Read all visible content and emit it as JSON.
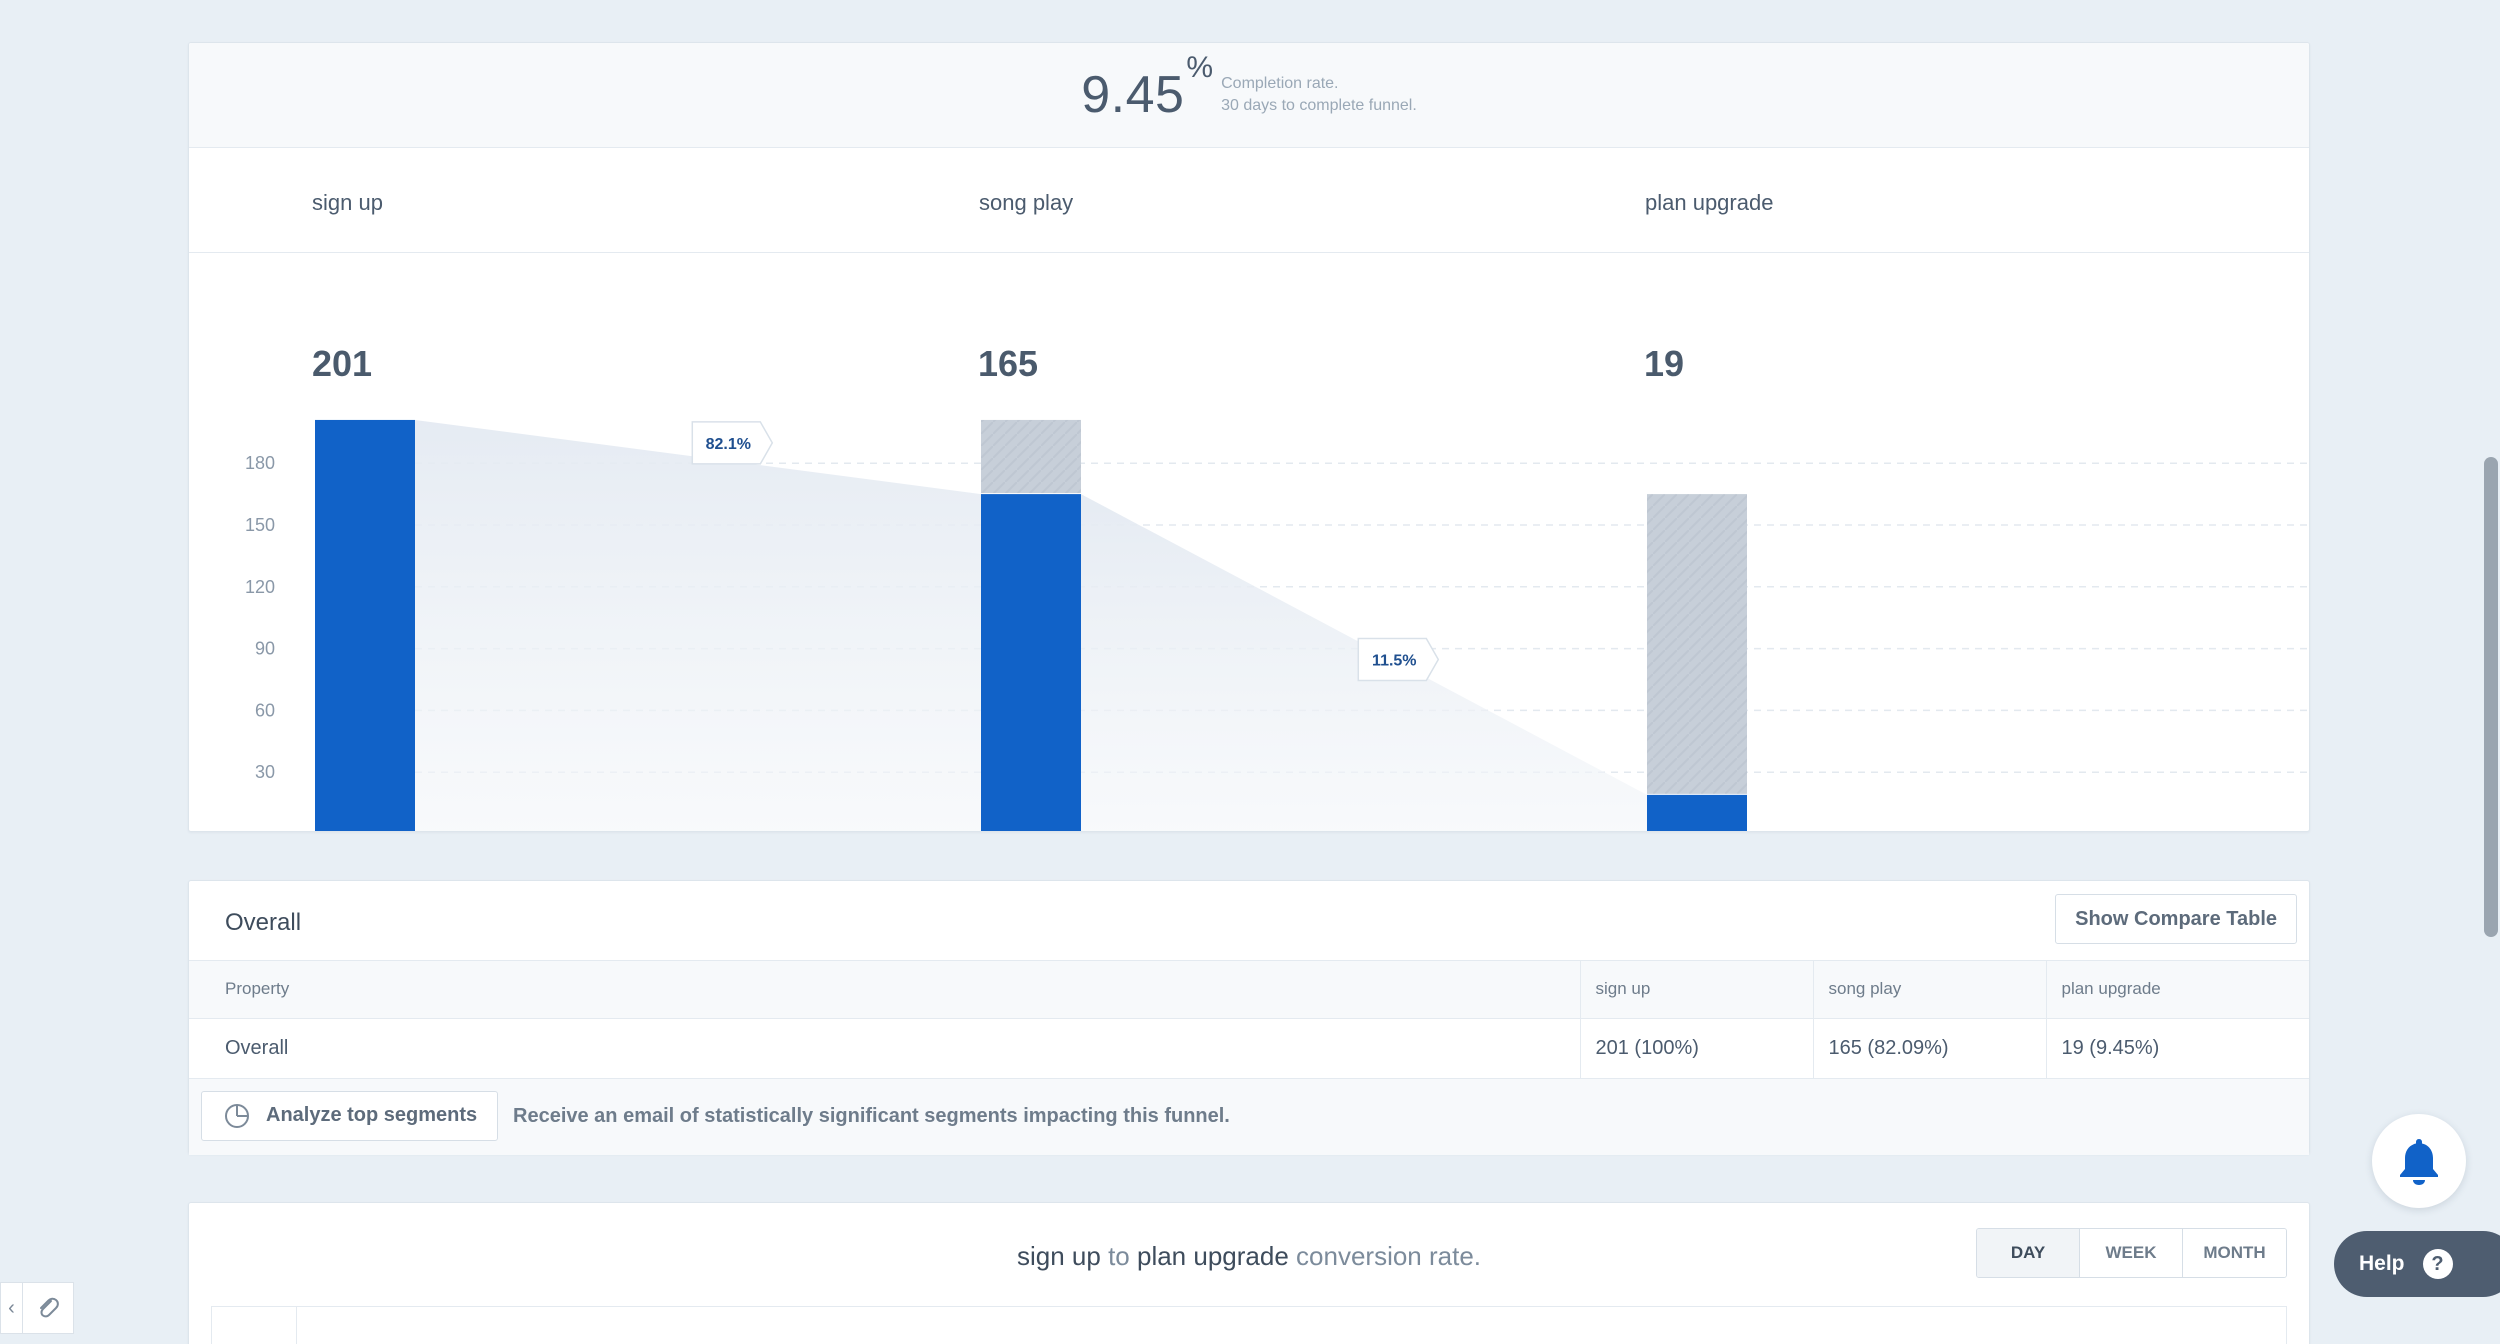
{
  "funnel": {
    "completion_value": "9.45",
    "completion_pct": "%",
    "completion_note_1": "Completion rate.",
    "completion_note_2": "30 days to complete funnel.",
    "steps": [
      {
        "name": "sign up",
        "count": "201"
      },
      {
        "name": "song play",
        "count": "165"
      },
      {
        "name": "plan upgrade",
        "count": "19"
      }
    ]
  },
  "chart_data": {
    "type": "bar",
    "categories": [
      "sign up",
      "song play",
      "plan upgrade"
    ],
    "series": [
      {
        "values": [
          201,
          165,
          19
        ]
      },
      {
        "values": [
          201,
          201,
          165
        ]
      }
    ],
    "step_conversion_labels": [
      "82.1%",
      "11.5%"
    ],
    "y_ticks": [
      30,
      60,
      90,
      120,
      150,
      180
    ],
    "ylim": [
      0,
      200
    ],
    "grid": true,
    "colors": {
      "converted": "#1162c8",
      "dropped": "#c6ced8",
      "flow": "#e9eef4",
      "label_text": "#1f4f8f"
    }
  },
  "overall": {
    "title": "Overall",
    "compare_button": "Show Compare Table",
    "columns": [
      "Property",
      "sign up",
      "song play",
      "plan upgrade"
    ],
    "rows": [
      [
        "Overall",
        "201 (100%)",
        "165 (82.09%)",
        "19 (9.45%)"
      ]
    ],
    "analyze_button": "Analyze top segments",
    "analyze_description": "Receive an email of statistically significant segments impacting this funnel."
  },
  "conversion": {
    "from_step": "sign up",
    "to_word": "to",
    "to_step": "plan upgrade",
    "suffix": "conversion rate.",
    "periods": [
      "DAY",
      "WEEK",
      "MONTH"
    ],
    "active_period": "DAY"
  },
  "widgets": {
    "help_label": "Help",
    "help_icon": "?",
    "bell_icon": "bell-icon",
    "collapse_icon": "‹",
    "link_icon": "paperclip-icon",
    "bell_color": "#1162c8"
  }
}
